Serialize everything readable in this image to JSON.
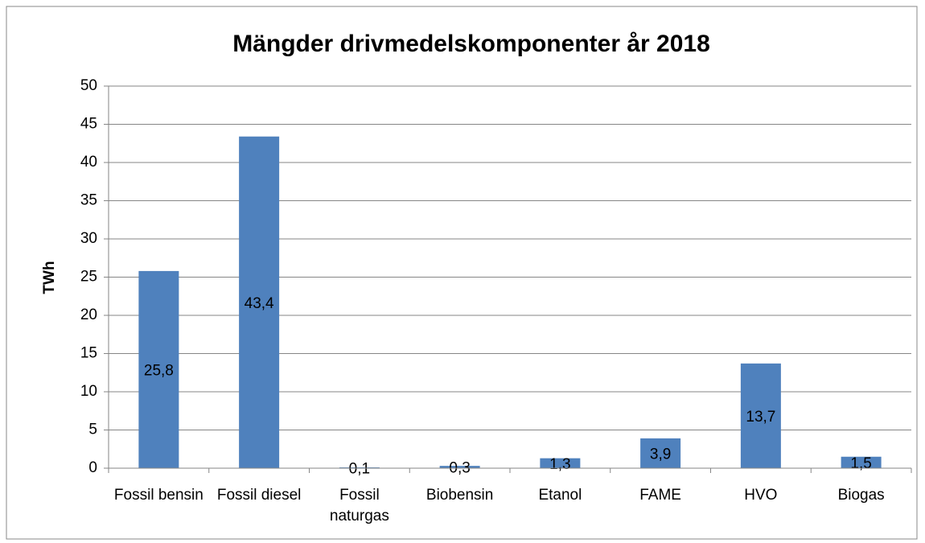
{
  "chart_data": {
    "type": "bar",
    "title": "Mängder drivmedelskomponenter år 2018",
    "y_label": "TWh",
    "categories": [
      "Fossil bensin",
      "Fossil diesel",
      "Fossil naturgas",
      "Biobensin",
      "Etanol",
      "FAME",
      "HVO",
      "Biogas"
    ],
    "values": [
      25.8,
      43.4,
      0.1,
      0.3,
      1.3,
      3.9,
      13.7,
      1.5
    ],
    "value_labels": [
      "25,8",
      "43,4",
      "0,1",
      "0,3",
      "1,3",
      "3,9",
      "13,7",
      "1,5"
    ],
    "color": "#4f81bd",
    "ylim": [
      0,
      50
    ],
    "yticks": [
      0,
      5,
      10,
      15,
      20,
      25,
      30,
      35,
      40,
      45,
      50
    ],
    "grid": true
  }
}
